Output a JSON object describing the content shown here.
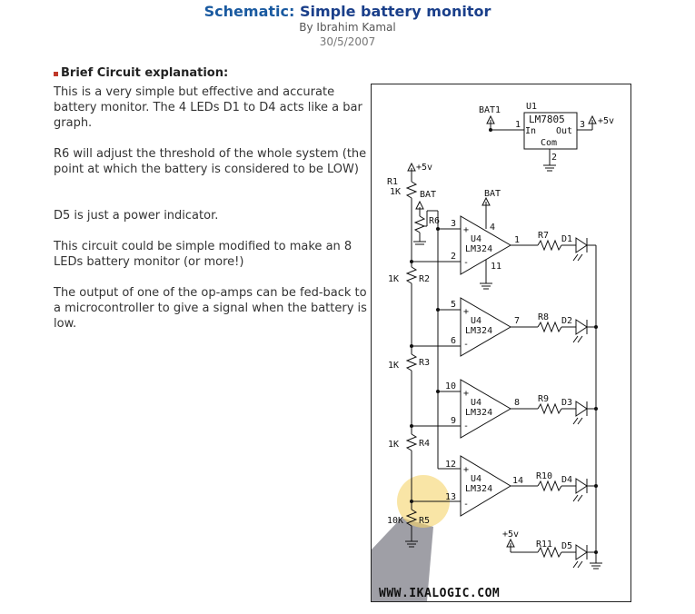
{
  "page": {
    "title_lead": "Schematic:",
    "title_rest": "Simple battery monitor",
    "author": "By Ibrahim Kamal",
    "date": "30/5/2007"
  },
  "explanation": {
    "heading": "Brief Circuit explanation:",
    "paragraphs": [
      "This is a very simple but effective and accurate battery monitor. The 4 LEDs D1 to D4 acts like a bar graph.",
      "R6 will adjust the threshold of the whole system (the point at which the battery is considered to be LOW)",
      "D5 is just a power indicator.",
      "This circuit could be simple modified to make an 8 LEDs battery monitor (or more!)",
      "The output of one of the op-amps can be fed-back to a microcontroller to give a signal when the battery is low."
    ]
  },
  "schematic": {
    "regulator": {
      "ref": "U1",
      "part": "LM7805",
      "in": "In",
      "out": "Out",
      "com": "Com",
      "pin_in": "1",
      "pin_out": "3",
      "pin_com": "2",
      "bat": "BAT1",
      "vout": "+5v"
    },
    "divider": {
      "vcc": "+5v",
      "r1": "R1",
      "r1_val": "1K",
      "r2": "R2",
      "r2_val": "1K",
      "r3": "R3",
      "r3_val": "1K",
      "r4": "R4",
      "r4_val": "1K",
      "r5": "R5",
      "r5_val": "10K",
      "r6": "R6",
      "r6_bat": "BAT"
    },
    "opamps": [
      {
        "ref": "U4",
        "part": "LM324",
        "pin_plus": "3",
        "pin_minus": "2",
        "pin_out": "1",
        "pin_vcc": "4",
        "pin_gnd": "11",
        "vcc_label": "BAT",
        "resistor": "R7",
        "led": "D1"
      },
      {
        "ref": "U4",
        "part": "LM324",
        "pin_plus": "5",
        "pin_minus": "6",
        "pin_out": "7",
        "resistor": "R8",
        "led": "D2"
      },
      {
        "ref": "U4",
        "part": "LM324",
        "pin_plus": "10",
        "pin_minus": "9",
        "pin_out": "8",
        "resistor": "R9",
        "led": "D3"
      },
      {
        "ref": "U4",
        "part": "LM324",
        "pin_plus": "12",
        "pin_minus": "13",
        "pin_out": "14",
        "resistor": "R10",
        "led": "D4"
      }
    ],
    "power_led": {
      "vcc": "+5v",
      "resistor": "R11",
      "led": "D5"
    },
    "watermark": "WWW.IKALOGIC.COM",
    "colors": {
      "title": "#1a3f8a",
      "bullet": "#c0392b",
      "highlight": "#f5d36b",
      "shadow": "#8e8e96"
    }
  }
}
